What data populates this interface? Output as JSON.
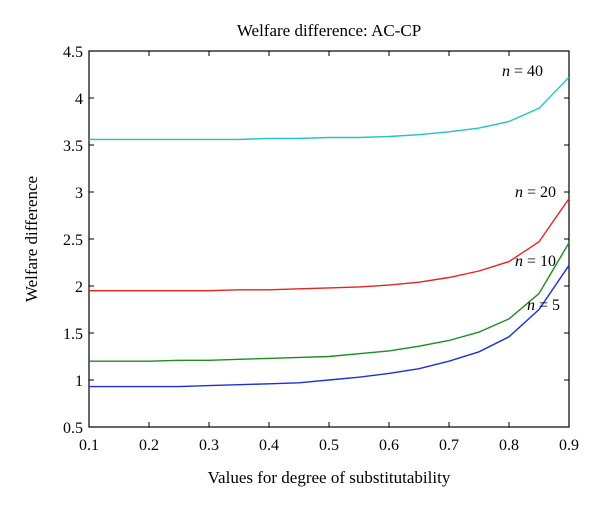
{
  "chart_data": {
    "type": "line",
    "title": "Welfare difference: AC-CP",
    "xlabel": "Values for degree of substitutability",
    "ylabel": "Welfare difference",
    "xlim": [
      0.1,
      0.9
    ],
    "ylim": [
      0.5,
      4.5
    ],
    "xticks": [
      "0.1",
      "0.2",
      "0.3",
      "0.4",
      "0.5",
      "0.6",
      "0.7",
      "0.8",
      "0.9"
    ],
    "yticks": [
      "0.5",
      "1",
      "1.5",
      "2",
      "2.5",
      "3",
      "3.5",
      "4",
      "4.5"
    ],
    "x": [
      0.1,
      0.15,
      0.2,
      0.25,
      0.3,
      0.35,
      0.4,
      0.45,
      0.5,
      0.55,
      0.6,
      0.65,
      0.7,
      0.75,
      0.8,
      0.85,
      0.9
    ],
    "series": [
      {
        "label_var": "n",
        "label_rest": " = 40",
        "color": "#1fc4c4",
        "values": [
          3.56,
          3.56,
          3.56,
          3.56,
          3.56,
          3.56,
          3.57,
          3.57,
          3.58,
          3.58,
          3.59,
          3.61,
          3.64,
          3.68,
          3.75,
          3.89,
          4.22
        ]
      },
      {
        "label_var": "n",
        "label_rest": " = 20",
        "color": "#e8231f",
        "values": [
          1.95,
          1.95,
          1.95,
          1.95,
          1.95,
          1.96,
          1.96,
          1.97,
          1.98,
          1.99,
          2.01,
          2.04,
          2.09,
          2.16,
          2.26,
          2.47,
          2.93
        ]
      },
      {
        "label_var": "n",
        "label_rest": " = 10",
        "color": "#1e8c1e",
        "values": [
          1.2,
          1.2,
          1.2,
          1.21,
          1.21,
          1.22,
          1.23,
          1.24,
          1.25,
          1.28,
          1.31,
          1.36,
          1.42,
          1.51,
          1.65,
          1.92,
          2.46
        ]
      },
      {
        "label_var": "n",
        "label_rest": " = 5",
        "color": "#1f2fd6",
        "values": [
          0.93,
          0.93,
          0.93,
          0.93,
          0.94,
          0.95,
          0.96,
          0.97,
          1.0,
          1.03,
          1.07,
          1.12,
          1.2,
          1.3,
          1.46,
          1.75,
          2.22
        ]
      }
    ],
    "grid": false,
    "legend": "inline labels near right end of each line"
  }
}
